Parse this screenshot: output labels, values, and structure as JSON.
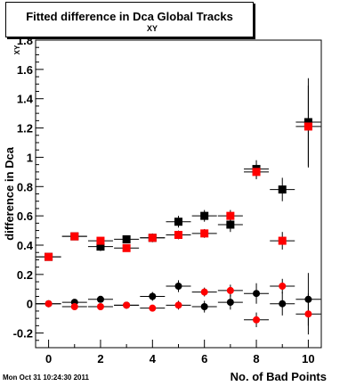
{
  "header": {
    "title": "Fitted difference in Dca Global Tracks",
    "title_subscript": "XY"
  },
  "footer": {
    "timestamp": "Mon Oct 31 10:24:30 2011"
  },
  "chart_data": {
    "type": "scatter",
    "title": "Fitted difference in Dca Global Tracks",
    "xlabel": "No. of Bad Points",
    "ylabel": "difference in Dca",
    "ylabel_subscript": "XY",
    "xlim": [
      -0.5,
      10.5
    ],
    "ylim": [
      -0.3,
      1.8
    ],
    "x_ticks": [
      0,
      2,
      4,
      6,
      8,
      10
    ],
    "y_ticks": [
      -0.2,
      0,
      0.2,
      0.4,
      0.6,
      0.8,
      1,
      1.2,
      1.4,
      1.6,
      1.8
    ],
    "y_tick_labels": [
      "-0.2",
      "0",
      "0.2",
      "0.4",
      "0.6",
      "0.8",
      "1",
      "1.2",
      "1.4",
      "1.6",
      "1.8"
    ],
    "grid": false,
    "series": [
      {
        "color": "#000000",
        "marker": "square",
        "x": [
          0,
          1,
          2,
          3,
          4,
          5,
          6,
          7,
          8,
          9,
          10
        ],
        "y": [
          0.32,
          0.46,
          0.39,
          0.44,
          0.45,
          0.56,
          0.6,
          0.54,
          0.92,
          0.78,
          1.24
        ],
        "yerr": [
          0.02,
          0.02,
          0.03,
          0.02,
          0.03,
          0.04,
          0.04,
          0.05,
          0.06,
          0.08,
          0.3
        ]
      },
      {
        "color": "#ff0000",
        "marker": "square",
        "x": [
          0,
          1,
          2,
          3,
          4,
          5,
          6,
          7,
          8,
          9,
          10
        ],
        "y": [
          0.32,
          0.46,
          0.43,
          0.38,
          0.45,
          0.47,
          0.48,
          0.6,
          0.9,
          0.43,
          1.21
        ],
        "yerr": [
          0.02,
          0.02,
          0.02,
          0.02,
          0.02,
          0.03,
          0.03,
          0.04,
          0.05,
          0.06,
          0.28
        ]
      },
      {
        "color": "#000000",
        "marker": "circle",
        "x": [
          0,
          1,
          2,
          3,
          4,
          5,
          6,
          7,
          8,
          9,
          10
        ],
        "y": [
          0.0,
          0.01,
          0.03,
          -0.01,
          0.05,
          0.12,
          -0.02,
          0.01,
          0.07,
          0.0,
          0.03
        ],
        "yerr": [
          0.01,
          0.01,
          0.02,
          0.01,
          0.03,
          0.04,
          0.04,
          0.05,
          0.07,
          0.08,
          0.18
        ]
      },
      {
        "color": "#ff0000",
        "marker": "circle",
        "x": [
          0,
          1,
          2,
          3,
          4,
          5,
          6,
          7,
          8,
          9,
          10
        ],
        "y": [
          0.0,
          -0.02,
          -0.02,
          -0.01,
          -0.03,
          -0.01,
          0.08,
          0.09,
          -0.11,
          0.12,
          -0.07
        ],
        "yerr": [
          0.01,
          0.01,
          0.02,
          0.01,
          0.02,
          0.03,
          0.03,
          0.04,
          0.05,
          0.05,
          0.14
        ]
      }
    ]
  }
}
